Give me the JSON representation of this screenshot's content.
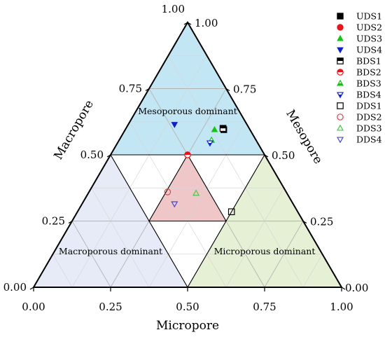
{
  "chart_data": {
    "type": "scatter",
    "subtype": "ternary",
    "axes": {
      "bottom": {
        "label": "Micropore",
        "ticks": [
          "0.00",
          "0.25",
          "0.50",
          "0.75",
          "1.00"
        ]
      },
      "right": {
        "label": "Mesopore",
        "ticks": [
          "0.00",
          "0.25",
          "0.50",
          "0.75",
          "1.00"
        ]
      },
      "left": {
        "label": "Macropore",
        "ticks": [
          "1.00",
          "0.75",
          "0.50",
          "0.25",
          "0.00"
        ]
      }
    },
    "grid": true,
    "grid_step": 0.125,
    "regions": [
      {
        "name": "mesoporous",
        "label": "Mesoporous dominant",
        "color": "#c3e6f5",
        "rule": "Mesopore >= 0.5"
      },
      {
        "name": "macroporous",
        "label": "Macroporous dominant",
        "color": "#e6ebf7",
        "rule": "Macropore >= 0.5"
      },
      {
        "name": "microporous",
        "label": "Microporous dominant",
        "color": "#e6f0d4",
        "rule": "Micropore >= 0.5"
      },
      {
        "name": "center",
        "label": "",
        "color": "#efc7c9",
        "rule": "all components <= 0.5, inner triangle"
      }
    ],
    "series": [
      {
        "name": "UDS1",
        "marker": "square",
        "filled": "full",
        "color": "#000000",
        "points": [
          {
            "micropore": 0.32,
            "mesopore": 0.595,
            "macropore": 0.085
          }
        ]
      },
      {
        "name": "UDS2",
        "marker": "circle",
        "filled": "full",
        "color": "#e8141b",
        "points": [
          {
            "micropore": 0.25,
            "mesopore": 0.5,
            "macropore": 0.25
          }
        ]
      },
      {
        "name": "UDS3",
        "marker": "triangle-up",
        "filled": "full",
        "color": "#11c611",
        "points": [
          {
            "micropore": 0.29,
            "mesopore": 0.595,
            "macropore": 0.115
          }
        ]
      },
      {
        "name": "UDS4",
        "marker": "triangle-down",
        "filled": "full",
        "color": "#1020c8",
        "points": [
          {
            "micropore": 0.15,
            "mesopore": 0.615,
            "macropore": 0.235
          }
        ]
      },
      {
        "name": "BDS1",
        "marker": "square",
        "filled": "half",
        "color": "#000000",
        "points": [
          {
            "micropore": 0.315,
            "mesopore": 0.6,
            "macropore": 0.085
          }
        ]
      },
      {
        "name": "BDS2",
        "marker": "circle",
        "filled": "half",
        "color": "#e8141b",
        "points": [
          {
            "micropore": 0.25,
            "mesopore": 0.5,
            "macropore": 0.25
          }
        ]
      },
      {
        "name": "BDS3",
        "marker": "triangle-up",
        "filled": "half",
        "color": "#11c611",
        "points": [
          {
            "micropore": 0.3,
            "mesopore": 0.555,
            "macropore": 0.145
          }
        ]
      },
      {
        "name": "BDS4",
        "marker": "triangle-down",
        "filled": "half",
        "color": "#1020c8",
        "points": [
          {
            "micropore": 0.3,
            "mesopore": 0.545,
            "macropore": 0.155
          }
        ]
      },
      {
        "name": "DDS1",
        "marker": "square",
        "filled": "none",
        "color": "#000000",
        "points": [
          {
            "micropore": 0.5,
            "mesopore": 0.285,
            "macropore": 0.215
          }
        ]
      },
      {
        "name": "DDS2",
        "marker": "circle",
        "filled": "none",
        "color": "#d84848",
        "points": [
          {
            "micropore": 0.255,
            "mesopore": 0.36,
            "macropore": 0.385
          }
        ]
      },
      {
        "name": "DDS3",
        "marker": "triangle-up",
        "filled": "none",
        "color": "#48c848",
        "points": [
          {
            "micropore": 0.35,
            "mesopore": 0.355,
            "macropore": 0.295
          }
        ]
      },
      {
        "name": "DDS4",
        "marker": "triangle-down",
        "filled": "none",
        "color": "#4848c8",
        "points": [
          {
            "micropore": 0.3,
            "mesopore": 0.315,
            "macropore": 0.385
          }
        ]
      }
    ],
    "legend": {
      "position": "right"
    }
  }
}
